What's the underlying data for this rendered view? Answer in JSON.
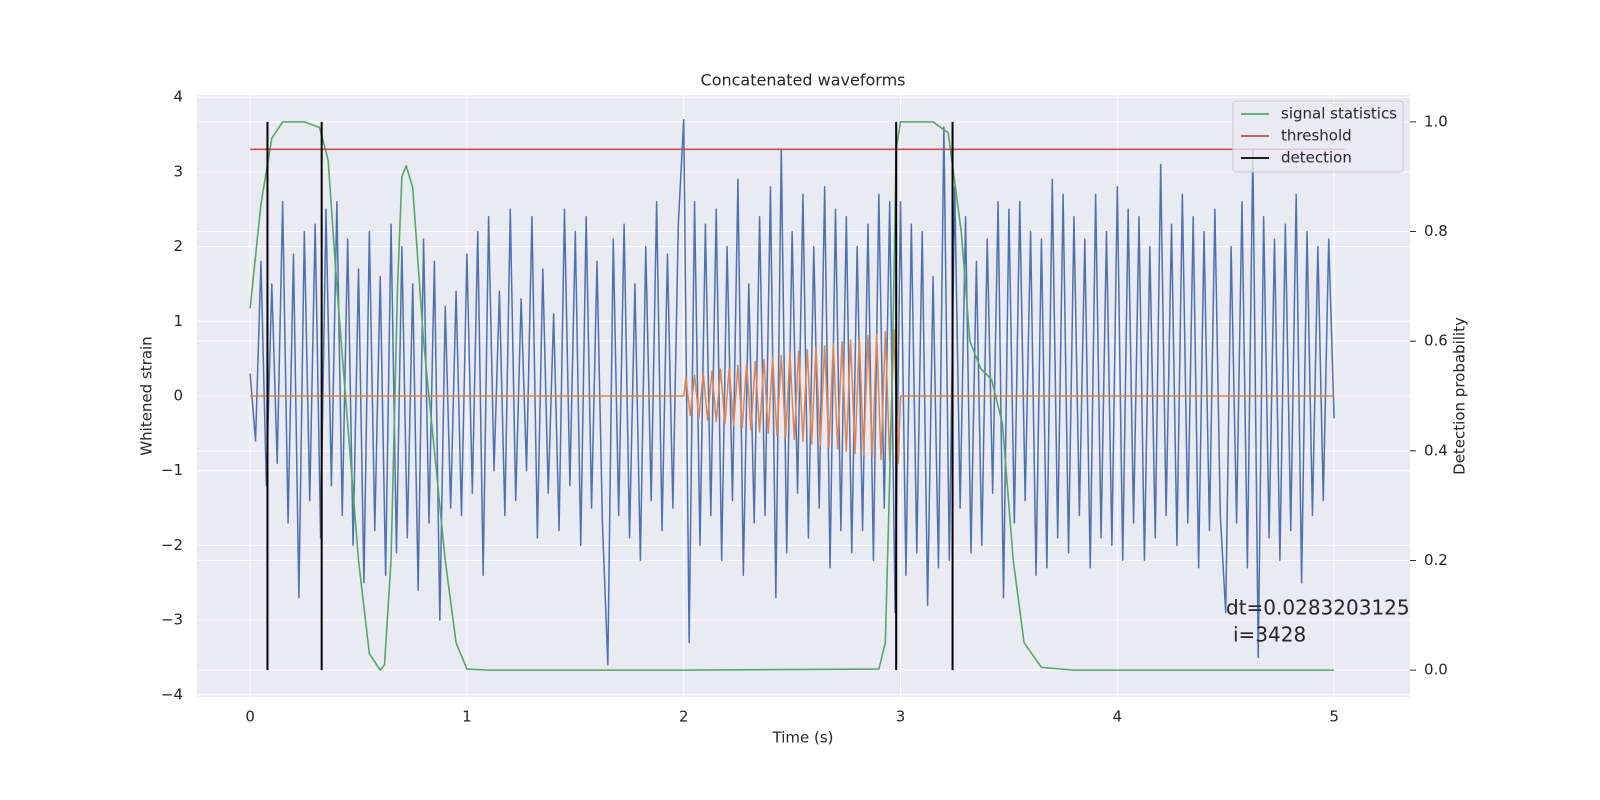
{
  "chart_data": {
    "type": "line",
    "title": "Concatenated waveforms",
    "xlabel": "Time (s)",
    "ylabel": "Whitened strain",
    "y2label": "Detection probability",
    "xlim": [
      -0.245,
      5.35
    ],
    "xticks": [
      0,
      1,
      2,
      3,
      4,
      5
    ],
    "ylim": [
      -4.03,
      4.03
    ],
    "yticks": [
      {
        "value": -4,
        "label": "−4"
      },
      {
        "value": -3,
        "label": "−3"
      },
      {
        "value": -2,
        "label": "−2"
      },
      {
        "value": -1,
        "label": "−1"
      },
      0,
      1,
      2,
      3,
      4
    ],
    "y2lim": [
      -0.049,
      1.049
    ],
    "y2ticks": [
      {
        "value": 0,
        "label": "0.0"
      },
      0.2,
      0.4,
      0.6,
      0.8,
      {
        "value": 1,
        "label": "1.0"
      }
    ],
    "grid": true,
    "legend": "upper right",
    "annotations": [
      "dt=0.0283203125",
      "i=3428"
    ],
    "series": [
      {
        "color": "#4c72b0",
        "x": [
          0,
          0.025,
          0.05,
          0.075,
          0.1,
          0.125,
          0.15,
          0.175,
          0.2,
          0.225,
          0.25,
          0.275,
          0.3,
          0.325,
          0.35,
          0.375,
          0.4,
          0.425,
          0.45,
          0.475,
          0.5,
          0.525,
          0.55,
          0.575,
          0.6,
          0.625,
          0.65,
          0.675,
          0.7,
          0.725,
          0.75,
          0.775,
          0.8,
          0.825,
          0.85,
          0.875,
          0.9,
          0.925,
          0.95,
          0.975,
          1,
          1.025,
          1.05,
          1.075,
          1.1,
          1.125,
          1.15,
          1.175,
          1.2,
          1.225,
          1.25,
          1.275,
          1.3,
          1.325,
          1.35,
          1.375,
          1.4,
          1.425,
          1.45,
          1.475,
          1.5,
          1.525,
          1.55,
          1.575,
          1.6,
          1.625,
          1.65,
          1.675,
          1.7,
          1.725,
          1.75,
          1.775,
          1.8,
          1.825,
          1.85,
          1.875,
          1.9,
          1.925,
          1.95,
          1.975,
          2,
          2.025,
          2.05,
          2.075,
          2.1,
          2.125,
          2.15,
          2.175,
          2.2,
          2.225,
          2.25,
          2.275,
          2.3,
          2.325,
          2.35,
          2.375,
          2.4,
          2.425,
          2.45,
          2.475,
          2.5,
          2.525,
          2.55,
          2.575,
          2.6,
          2.625,
          2.65,
          2.675,
          2.7,
          2.725,
          2.75,
          2.775,
          2.8,
          2.825,
          2.85,
          2.875,
          2.9,
          2.925,
          2.95,
          2.975,
          3,
          3.025,
          3.05,
          3.075,
          3.1,
          3.125,
          3.15,
          3.175,
          3.2,
          3.225,
          3.25,
          3.275,
          3.3,
          3.325,
          3.35,
          3.375,
          3.4,
          3.425,
          3.45,
          3.475,
          3.5,
          3.525,
          3.55,
          3.575,
          3.6,
          3.625,
          3.65,
          3.675,
          3.7,
          3.725,
          3.75,
          3.775,
          3.8,
          3.825,
          3.85,
          3.875,
          3.9,
          3.925,
          3.95,
          3.975,
          4,
          4.025,
          4.05,
          4.075,
          4.1,
          4.125,
          4.15,
          4.175,
          4.2,
          4.225,
          4.25,
          4.275,
          4.3,
          4.325,
          4.35,
          4.375,
          4.4,
          4.425,
          4.45,
          4.475,
          4.5,
          4.525,
          4.55,
          4.575,
          4.6,
          4.625,
          4.65,
          4.675,
          4.7,
          4.725,
          4.75,
          4.775,
          4.8,
          4.825,
          4.85,
          4.875,
          4.9,
          4.925,
          4.95,
          4.975,
          5
        ],
        "values": [
          0.3,
          -0.6,
          1.8,
          -1.2,
          1.5,
          -0.9,
          2.6,
          -1.7,
          1.9,
          -2.7,
          2.2,
          -1.4,
          2.3,
          -1.9,
          2.5,
          -1.2,
          2.6,
          -1.6,
          2.1,
          -2.0,
          1.7,
          -2.5,
          2.2,
          -1.8,
          1.6,
          -2.4,
          2.3,
          -2.1,
          2.0,
          -1.9,
          1.5,
          -2.6,
          2.1,
          -1.7,
          1.8,
          -3.0,
          1.2,
          -1.5,
          1.4,
          -1.6,
          1.9,
          -1.3,
          2.2,
          -2.4,
          2.4,
          -1.0,
          1.4,
          -1.6,
          2.5,
          -1.4,
          1.3,
          -1.0,
          2.4,
          -1.9,
          1.7,
          -1.3,
          1.1,
          -1.8,
          2.5,
          -1.2,
          2.2,
          -2.0,
          2.4,
          -1.5,
          1.8,
          -1.7,
          -3.6,
          2.1,
          -1.6,
          2.3,
          -1.9,
          1.5,
          -2.2,
          2.0,
          -1.4,
          2.6,
          -1.8,
          1.9,
          -1.5,
          2.3,
          3.7,
          -3.3,
          2.6,
          -2.0,
          2.3,
          -1.6,
          2.5,
          -2.2,
          2.0,
          -1.4,
          2.9,
          -2.4,
          1.5,
          -1.7,
          2.4,
          -1.6,
          2.8,
          -2.7,
          3.3,
          -2.1,
          2.2,
          -1.3,
          2.7,
          -1.9,
          2.0,
          -1.5,
          2.8,
          -2.3,
          2.5,
          -1.8,
          2.4,
          -2.1,
          2.0,
          -1.8,
          2.3,
          -2.2,
          2.7,
          -1.5,
          2.6,
          -2.9,
          2.6,
          -2.4,
          2.3,
          -2.1,
          2.2,
          -2.8,
          1.6,
          -2.3,
          3.6,
          -2.2,
          2.8,
          -1.5,
          2.4,
          -2.1,
          1.8,
          -2.0,
          2.1,
          -1.3,
          2.6,
          -2.7,
          2.5,
          -1.7,
          2.6,
          -1.4,
          2.2,
          -2.4,
          2.1,
          -2.3,
          2.9,
          -1.9,
          2.7,
          -2.1,
          2.4,
          -1.6,
          2.1,
          -2.3,
          2.7,
          -1.9,
          2.2,
          -2.0,
          2.8,
          -2.2,
          2.5,
          -1.7,
          2.4,
          -2.2,
          2.0,
          -1.9,
          3.1,
          -1.6,
          2.3,
          -2.0,
          2.7,
          -1.7,
          2.4,
          -2.3,
          2.2,
          -1.8,
          2.5,
          -1.6,
          -2.9,
          2.0,
          -1.7,
          2.6,
          -2.3,
          3.3,
          -3.5,
          2.4,
          -1.9,
          2.1,
          -2.2,
          2.3,
          -1.8,
          2.7,
          -2.5,
          2.2,
          -1.6,
          2.0,
          -1.4,
          2.1,
          -0.3
        ]
      },
      {
        "color": "#dd8452",
        "x": [
          0,
          2.0,
          2.01,
          2.03,
          2.05,
          2.07,
          2.09,
          2.11,
          2.13,
          2.15,
          2.17,
          2.19,
          2.21,
          2.23,
          2.25,
          2.27,
          2.29,
          2.31,
          2.33,
          2.35,
          2.37,
          2.39,
          2.41,
          2.43,
          2.45,
          2.47,
          2.49,
          2.51,
          2.53,
          2.55,
          2.57,
          2.59,
          2.61,
          2.63,
          2.65,
          2.67,
          2.69,
          2.71,
          2.73,
          2.75,
          2.77,
          2.79,
          2.81,
          2.83,
          2.85,
          2.87,
          2.89,
          2.91,
          2.93,
          2.95,
          2.97,
          2.99,
          3.0,
          5.0
        ],
        "values": [
          0,
          0,
          0.25,
          -0.26,
          0.28,
          -0.29,
          0.3,
          -0.32,
          0.33,
          -0.34,
          0.36,
          -0.37,
          0.38,
          -0.4,
          0.41,
          -0.42,
          0.44,
          -0.45,
          0.46,
          -0.48,
          0.49,
          -0.5,
          0.52,
          -0.53,
          0.54,
          -0.56,
          0.57,
          -0.58,
          0.6,
          -0.61,
          0.62,
          -0.64,
          0.65,
          -0.66,
          0.67,
          -0.69,
          0.7,
          -0.71,
          0.73,
          -0.74,
          0.75,
          -0.77,
          0.78,
          -0.79,
          0.81,
          -0.82,
          0.83,
          -0.85,
          0.86,
          -0.87,
          0.89,
          -0.9,
          0,
          0
        ]
      },
      {
        "name": "signal statistics",
        "color": "#55a868",
        "axis": "y2",
        "x": [
          0,
          0.05,
          0.1,
          0.15,
          0.25,
          0.32,
          0.36,
          0.4,
          0.45,
          0.5,
          0.55,
          0.6,
          0.62,
          0.65,
          0.68,
          0.7,
          0.72,
          0.75,
          0.8,
          0.85,
          0.9,
          0.95,
          1.0,
          1.1,
          2.0,
          2.9,
          2.93,
          2.96,
          2.98,
          3.0,
          3.15,
          3.22,
          3.28,
          3.32,
          3.37,
          3.42,
          3.47,
          3.52,
          3.57,
          3.65,
          3.8,
          5.0
        ],
        "values": [
          0.66,
          0.85,
          0.97,
          1.0,
          1.0,
          0.99,
          0.93,
          0.7,
          0.45,
          0.2,
          0.03,
          0.0,
          0.01,
          0.2,
          0.7,
          0.9,
          0.92,
          0.88,
          0.6,
          0.4,
          0.2,
          0.05,
          0.002,
          0.0,
          0.0,
          0.002,
          0.05,
          0.5,
          0.95,
          1.0,
          1.0,
          0.98,
          0.8,
          0.6,
          0.55,
          0.53,
          0.45,
          0.2,
          0.05,
          0.005,
          0.0,
          0.0
        ]
      },
      {
        "name": "threshold",
        "color": "#c44e52",
        "axis": "y2",
        "x": [
          0,
          5.05
        ],
        "values": [
          0.95,
          0.95
        ]
      },
      {
        "name": "detection",
        "color": "#000000",
        "axis": "y2",
        "type": "vlines",
        "x": [
          0.08,
          0.33,
          2.98,
          3.24
        ],
        "ymin": 0,
        "ymax": 1
      }
    ]
  }
}
